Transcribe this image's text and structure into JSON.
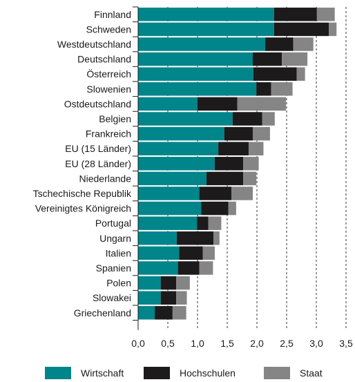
{
  "chart_data": {
    "type": "bar",
    "orientation": "horizontal",
    "stacked": true,
    "categories": [
      "Finnland",
      "Schweden",
      "Westdeutschland",
      "Deutschland",
      "Österreich",
      "Slowenien",
      "Ostdeutschland",
      "Belgien",
      "Frankreich",
      "EU (15 Länder)",
      "EU (28 Länder)",
      "Niederlande",
      "Tschechische Republik",
      "Vereinigtes Königreich",
      "Portugal",
      "Ungarn",
      "Italien",
      "Spanien",
      "Polen",
      "Slowakei",
      "Griechenland"
    ],
    "series": [
      {
        "name": "Wirtschaft",
        "color": "#00858a",
        "values": [
          2.29,
          2.29,
          2.14,
          1.93,
          1.94,
          1.99,
          1.0,
          1.59,
          1.45,
          1.35,
          1.29,
          1.15,
          1.03,
          1.06,
          0.99,
          0.65,
          0.69,
          0.67,
          0.38,
          0.38,
          0.28
        ]
      },
      {
        "name": "Hochschulen",
        "color": "#1c1a1a",
        "values": [
          0.72,
          0.92,
          0.47,
          0.49,
          0.73,
          0.25,
          0.67,
          0.5,
          0.48,
          0.51,
          0.48,
          0.62,
          0.54,
          0.46,
          0.19,
          0.62,
          0.4,
          0.36,
          0.26,
          0.26,
          0.3
        ]
      },
      {
        "name": "Staat",
        "color": "#858585",
        "values": [
          0.3,
          0.13,
          0.34,
          0.43,
          0.14,
          0.36,
          0.82,
          0.21,
          0.29,
          0.25,
          0.26,
          0.22,
          0.36,
          0.13,
          0.22,
          0.1,
          0.2,
          0.23,
          0.23,
          0.18,
          0.23
        ]
      }
    ],
    "x_ticks": [
      "0,0",
      "0,5",
      "1,0",
      "1,5",
      "2,0",
      "2,5",
      "3,0",
      "3,5"
    ],
    "xlim": [
      0,
      3.5
    ],
    "grid": "dashed vertical",
    "legend_position": "bottom"
  }
}
